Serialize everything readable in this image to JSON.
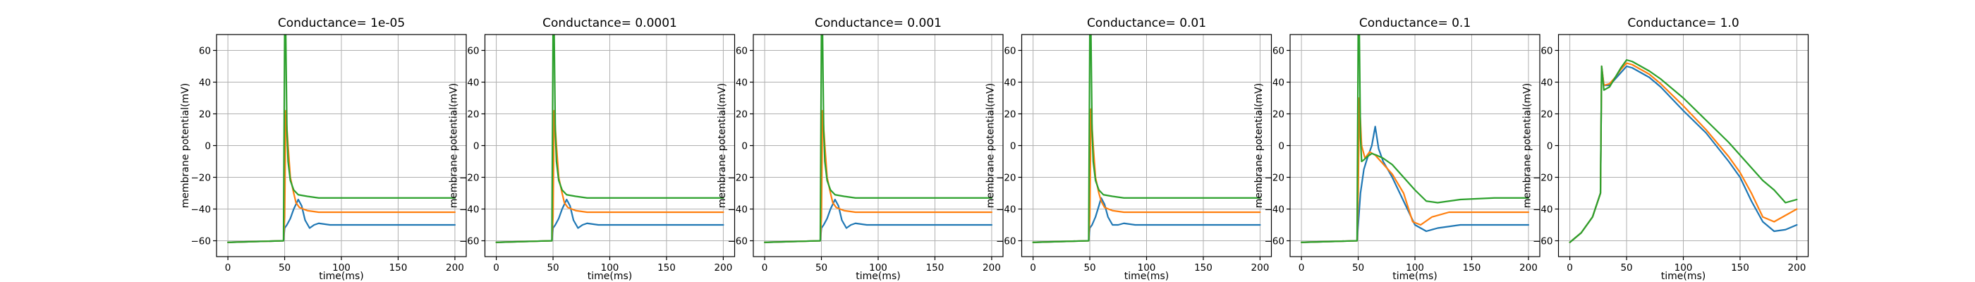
{
  "chart_data": [
    {
      "type": "line",
      "title": "Conductance= 1e-05",
      "xlabel": "time(ms)",
      "ylabel": "membrane potential(mV)",
      "xlim": [
        -10,
        210
      ],
      "ylim": [
        -70,
        70
      ],
      "xticks": [
        0,
        50,
        100,
        150,
        200
      ],
      "yticks": [
        -60,
        -40,
        -20,
        0,
        20,
        40,
        60
      ],
      "grid": true,
      "series": [
        {
          "color": "#1f77b4",
          "x": [
            0,
            49,
            50,
            52,
            55,
            58,
            62,
            65,
            68,
            72,
            76,
            80,
            90,
            100,
            150,
            200
          ],
          "y": [
            -61,
            -60,
            -52,
            -50,
            -46,
            -40,
            -34,
            -38,
            -47,
            -52,
            -50,
            -49,
            -50,
            -50,
            -50,
            -50
          ]
        },
        {
          "color": "#ff7f0e",
          "x": [
            0,
            49,
            50,
            51,
            53,
            55,
            58,
            60,
            63,
            70,
            80,
            100,
            150,
            200
          ],
          "y": [
            -61,
            -60,
            -45,
            22,
            0,
            -20,
            -30,
            -36,
            -39,
            -41,
            -42,
            -42,
            -42,
            -42
          ]
        },
        {
          "color": "#2ca02c",
          "x": [
            0,
            49,
            50,
            51,
            52,
            53,
            55,
            58,
            62,
            70,
            80,
            100,
            150,
            200
          ],
          "y": [
            -61,
            -60,
            70,
            70,
            10,
            -10,
            -22,
            -28,
            -31,
            -32,
            -33,
            -33,
            -33,
            -33
          ]
        }
      ]
    },
    {
      "type": "line",
      "title": "Conductance= 0.0001",
      "xlabel": "time(ms)",
      "ylabel": "membrane potential(mV)",
      "xlim": [
        -10,
        210
      ],
      "ylim": [
        -70,
        70
      ],
      "xticks": [
        0,
        50,
        100,
        150,
        200
      ],
      "yticks": [
        -60,
        -40,
        -20,
        0,
        20,
        40,
        60
      ],
      "grid": true,
      "series": [
        {
          "color": "#1f77b4",
          "x": [
            0,
            49,
            50,
            52,
            55,
            58,
            62,
            65,
            68,
            72,
            76,
            80,
            90,
            100,
            150,
            200
          ],
          "y": [
            -61,
            -60,
            -52,
            -50,
            -46,
            -40,
            -34,
            -38,
            -47,
            -52,
            -50,
            -49,
            -50,
            -50,
            -50,
            -50
          ]
        },
        {
          "color": "#ff7f0e",
          "x": [
            0,
            49,
            50,
            51,
            53,
            55,
            58,
            60,
            63,
            70,
            80,
            100,
            150,
            200
          ],
          "y": [
            -61,
            -60,
            -45,
            22,
            0,
            -20,
            -30,
            -36,
            -39,
            -41,
            -42,
            -42,
            -42,
            -42
          ]
        },
        {
          "color": "#2ca02c",
          "x": [
            0,
            49,
            50,
            51,
            52,
            53,
            55,
            58,
            62,
            70,
            80,
            100,
            150,
            200
          ],
          "y": [
            -61,
            -60,
            70,
            70,
            10,
            -10,
            -22,
            -28,
            -31,
            -32,
            -33,
            -33,
            -33,
            -33
          ]
        }
      ]
    },
    {
      "type": "line",
      "title": "Conductance= 0.001",
      "xlabel": "time(ms)",
      "ylabel": "membrane potential(mV)",
      "xlim": [
        -10,
        210
      ],
      "ylim": [
        -70,
        70
      ],
      "xticks": [
        0,
        50,
        100,
        150,
        200
      ],
      "yticks": [
        -60,
        -40,
        -20,
        0,
        20,
        40,
        60
      ],
      "grid": true,
      "series": [
        {
          "color": "#1f77b4",
          "x": [
            0,
            49,
            50,
            52,
            55,
            58,
            62,
            65,
            68,
            72,
            76,
            80,
            90,
            100,
            150,
            200
          ],
          "y": [
            -61,
            -60,
            -52,
            -50,
            -46,
            -40,
            -34,
            -38,
            -47,
            -52,
            -50,
            -49,
            -50,
            -50,
            -50,
            -50
          ]
        },
        {
          "color": "#ff7f0e",
          "x": [
            0,
            49,
            50,
            51,
            53,
            55,
            58,
            60,
            63,
            70,
            80,
            100,
            150,
            200
          ],
          "y": [
            -61,
            -60,
            -45,
            22,
            0,
            -20,
            -30,
            -36,
            -39,
            -41,
            -42,
            -42,
            -42,
            -42
          ]
        },
        {
          "color": "#2ca02c",
          "x": [
            0,
            49,
            50,
            51,
            52,
            53,
            55,
            58,
            62,
            70,
            80,
            100,
            150,
            200
          ],
          "y": [
            -61,
            -60,
            70,
            70,
            10,
            -10,
            -22,
            -28,
            -31,
            -32,
            -33,
            -33,
            -33,
            -33
          ]
        }
      ]
    },
    {
      "type": "line",
      "title": "Conductance= 0.01",
      "xlabel": "time(ms)",
      "ylabel": "membrane potential(mV)",
      "xlim": [
        -10,
        210
      ],
      "ylim": [
        -70,
        70
      ],
      "xticks": [
        0,
        50,
        100,
        150,
        200
      ],
      "yticks": [
        -60,
        -40,
        -20,
        0,
        20,
        40,
        60
      ],
      "grid": true,
      "series": [
        {
          "color": "#1f77b4",
          "x": [
            0,
            49,
            50,
            52,
            55,
            58,
            60,
            63,
            66,
            70,
            75,
            80,
            90,
            100,
            150,
            200
          ],
          "y": [
            -61,
            -60,
            -52,
            -50,
            -45,
            -38,
            -33,
            -37,
            -45,
            -50,
            -50,
            -49,
            -50,
            -50,
            -50,
            -50
          ]
        },
        {
          "color": "#ff7f0e",
          "x": [
            0,
            49,
            50,
            51,
            53,
            55,
            58,
            60,
            63,
            70,
            80,
            100,
            150,
            200
          ],
          "y": [
            -61,
            -60,
            -45,
            23,
            0,
            -20,
            -30,
            -35,
            -39,
            -41,
            -42,
            -42,
            -42,
            -42
          ]
        },
        {
          "color": "#2ca02c",
          "x": [
            0,
            49,
            50,
            51,
            52,
            53,
            55,
            58,
            62,
            70,
            80,
            100,
            150,
            200
          ],
          "y": [
            -61,
            -60,
            70,
            70,
            10,
            -10,
            -22,
            -28,
            -31,
            -32,
            -33,
            -33,
            -33,
            -33
          ]
        }
      ]
    },
    {
      "type": "line",
      "title": "Conductance= 0.1",
      "xlabel": "time(ms)",
      "ylabel": "membrane potential(mV)",
      "xlim": [
        -10,
        210
      ],
      "ylim": [
        -70,
        70
      ],
      "xticks": [
        0,
        50,
        100,
        150,
        200
      ],
      "yticks": [
        -60,
        -40,
        -20,
        0,
        20,
        40,
        60
      ],
      "grid": true,
      "series": [
        {
          "color": "#1f77b4",
          "x": [
            0,
            49,
            50,
            52,
            55,
            58,
            62,
            65,
            68,
            72,
            80,
            90,
            100,
            110,
            120,
            140,
            160,
            200
          ],
          "y": [
            -61,
            -60,
            -50,
            -30,
            -15,
            -8,
            0,
            12,
            -2,
            -10,
            -20,
            -35,
            -50,
            -54,
            -52,
            -50,
            -50,
            -50
          ]
        },
        {
          "color": "#ff7f0e",
          "x": [
            0,
            49,
            50,
            51,
            53,
            56,
            60,
            65,
            70,
            80,
            90,
            98,
            105,
            115,
            130,
            160,
            200
          ],
          "y": [
            -61,
            -60,
            -30,
            30,
            0,
            -8,
            -4,
            -6,
            -10,
            -18,
            -30,
            -48,
            -50,
            -45,
            -42,
            -42,
            -42
          ]
        },
        {
          "color": "#2ca02c",
          "x": [
            0,
            49,
            50,
            51,
            52,
            53,
            55,
            58,
            62,
            66,
            72,
            80,
            90,
            100,
            110,
            120,
            140,
            170,
            200
          ],
          "y": [
            -61,
            -60,
            70,
            70,
            5,
            -10,
            -9,
            -7,
            -5,
            -6,
            -8,
            -12,
            -20,
            -28,
            -35,
            -36,
            -34,
            -33,
            -33
          ]
        }
      ]
    },
    {
      "type": "line",
      "title": "Conductance= 1.0",
      "xlabel": "time(ms)",
      "ylabel": "membrane potential(mV)",
      "xlim": [
        -10,
        210
      ],
      "ylim": [
        -70,
        70
      ],
      "xticks": [
        0,
        50,
        100,
        150,
        200
      ],
      "yticks": [
        -60,
        -40,
        -20,
        0,
        20,
        40,
        60
      ],
      "grid": true,
      "series": [
        {
          "color": "#1f77b4",
          "x": [
            0,
            10,
            20,
            27,
            28,
            30,
            35,
            40,
            45,
            50,
            55,
            60,
            70,
            80,
            100,
            120,
            140,
            150,
            160,
            170,
            180,
            190,
            200
          ],
          "y": [
            -61,
            -55,
            -45,
            -30,
            50,
            38,
            38,
            42,
            46,
            50,
            49,
            47,
            43,
            37,
            22,
            8,
            -10,
            -20,
            -35,
            -48,
            -54,
            -53,
            -50
          ]
        },
        {
          "color": "#ff7f0e",
          "x": [
            0,
            10,
            20,
            27,
            28,
            30,
            35,
            40,
            45,
            50,
            55,
            60,
            70,
            80,
            100,
            120,
            140,
            150,
            160,
            170,
            180,
            190,
            200
          ],
          "y": [
            -61,
            -55,
            -45,
            -30,
            50,
            38,
            39,
            43,
            48,
            52,
            51,
            49,
            45,
            39,
            25,
            10,
            -7,
            -17,
            -30,
            -45,
            -48,
            -44,
            -40
          ]
        },
        {
          "color": "#2ca02c",
          "x": [
            0,
            10,
            20,
            27,
            28,
            30,
            35,
            40,
            45,
            50,
            55,
            60,
            70,
            80,
            100,
            120,
            140,
            150,
            160,
            170,
            180,
            190,
            200
          ],
          "y": [
            -61,
            -55,
            -45,
            -30,
            50,
            35,
            37,
            43,
            49,
            54,
            53,
            51,
            47,
            42,
            30,
            16,
            2,
            -6,
            -14,
            -22,
            -28,
            -36,
            -34
          ]
        }
      ]
    }
  ]
}
